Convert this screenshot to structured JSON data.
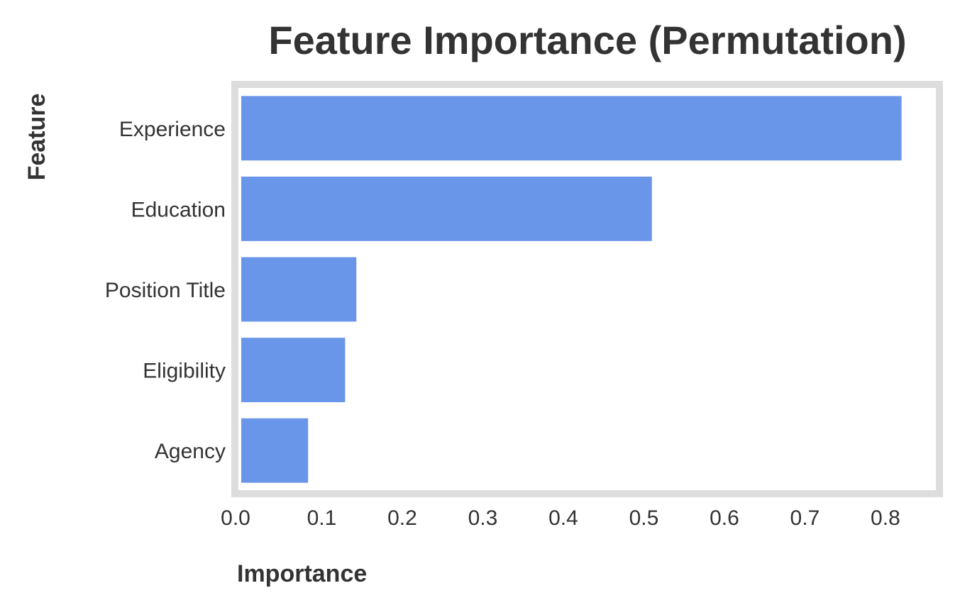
{
  "chart_data": {
    "type": "bar",
    "orientation": "horizontal",
    "title": "Feature Importance (Permutation)",
    "xlabel": "Importance",
    "ylabel": "Feature",
    "categories": [
      "Experience",
      "Education",
      "Position Title",
      "Eligibility",
      "Agency"
    ],
    "values": [
      0.82,
      0.51,
      0.143,
      0.129,
      0.083
    ],
    "xlim": [
      0,
      0.86
    ],
    "xticks": [
      0.0,
      0.1,
      0.2,
      0.3,
      0.4,
      0.5,
      0.6,
      0.7,
      0.8
    ],
    "xtick_labels": [
      "0.0",
      "0.1",
      "0.2",
      "0.3",
      "0.4",
      "0.5",
      "0.6",
      "0.7",
      "0.8"
    ],
    "grid": false,
    "bar_color": "#6a96e9",
    "frame_color": "#dddddd"
  }
}
